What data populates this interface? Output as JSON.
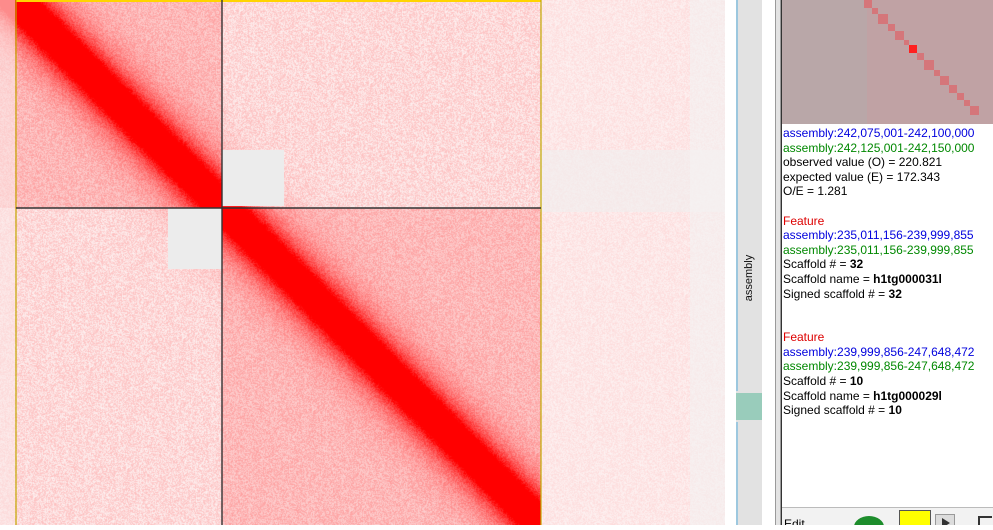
{
  "track": {
    "name": "assembly"
  },
  "hover_info": {
    "region_x": "assembly:242,075,001-242,100,000",
    "region_y": "assembly:242,125,001-242,150,000",
    "observed": "observed value (O) = 220.821",
    "expected": "expected value (E) = 172.343",
    "oe": "O/E = 1.281"
  },
  "features": [
    {
      "header": "Feature",
      "region_x": "assembly:235,011,156-239,999,855",
      "region_y": "assembly:235,011,156-239,999,855",
      "scaffold_num_label": "Scaffold # = ",
      "scaffold_num": "32",
      "scaffold_name_label": "Scaffold name = ",
      "scaffold_name": "h1tg000031l",
      "signed_label": "Signed scaffold # = ",
      "signed_num": "32"
    },
    {
      "header": "Feature",
      "region_x": "assembly:239,999,856-247,648,472",
      "region_y": "assembly:239,999,856-247,648,472",
      "scaffold_num_label": "Scaffold # = ",
      "scaffold_num": "10",
      "scaffold_name_label": "Scaffold name = ",
      "scaffold_name": "h1tg000029l",
      "signed_label": "Signed scaffold # = ",
      "signed_num": "10"
    }
  ],
  "toolbar": {
    "edit_label": "Edit"
  },
  "colors": {
    "heat": "#ff0000",
    "heat_background": "#fdf3f3",
    "border_yellow": "#ffd400",
    "border_dark": "#333333",
    "region_x": "#0000dd",
    "region_y": "#008800",
    "feature_header": "#dd0000",
    "track_highlight": "#99ccbb",
    "color_swatch": "#ffff00"
  }
}
